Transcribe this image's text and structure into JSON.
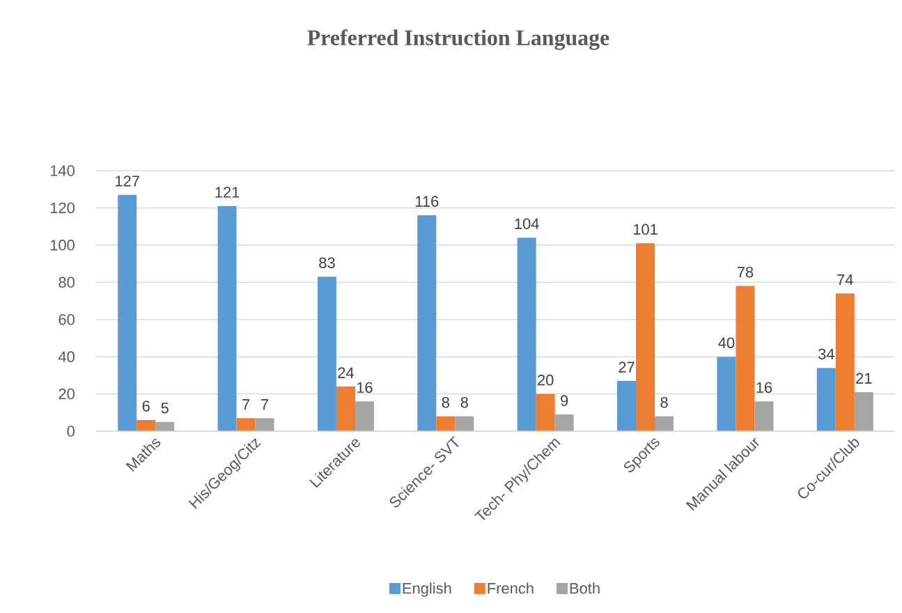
{
  "chart_data": {
    "type": "bar",
    "title": "Preferred Instruction Language",
    "categories": [
      "Maths",
      "His/Geog/Citz",
      "Literature",
      "Science- SVT",
      "Tech- Phy/Chem",
      "Sports",
      "Manual labour",
      "Co-cur/Club"
    ],
    "series": [
      {
        "name": "English",
        "color": "#5b9bd5",
        "values": [
          127,
          121,
          83,
          116,
          104,
          27,
          40,
          34
        ]
      },
      {
        "name": "French",
        "color": "#ed7d31",
        "values": [
          6,
          7,
          24,
          8,
          20,
          101,
          78,
          74
        ]
      },
      {
        "name": "Both",
        "color": "#a5a5a5",
        "values": [
          5,
          7,
          16,
          8,
          9,
          8,
          16,
          21
        ]
      }
    ],
    "ylim": [
      0,
      140
    ],
    "yticks": [
      0,
      20,
      40,
      60,
      80,
      100,
      120,
      140
    ],
    "grid": "y",
    "legend": "bottom",
    "data_labels": true
  }
}
